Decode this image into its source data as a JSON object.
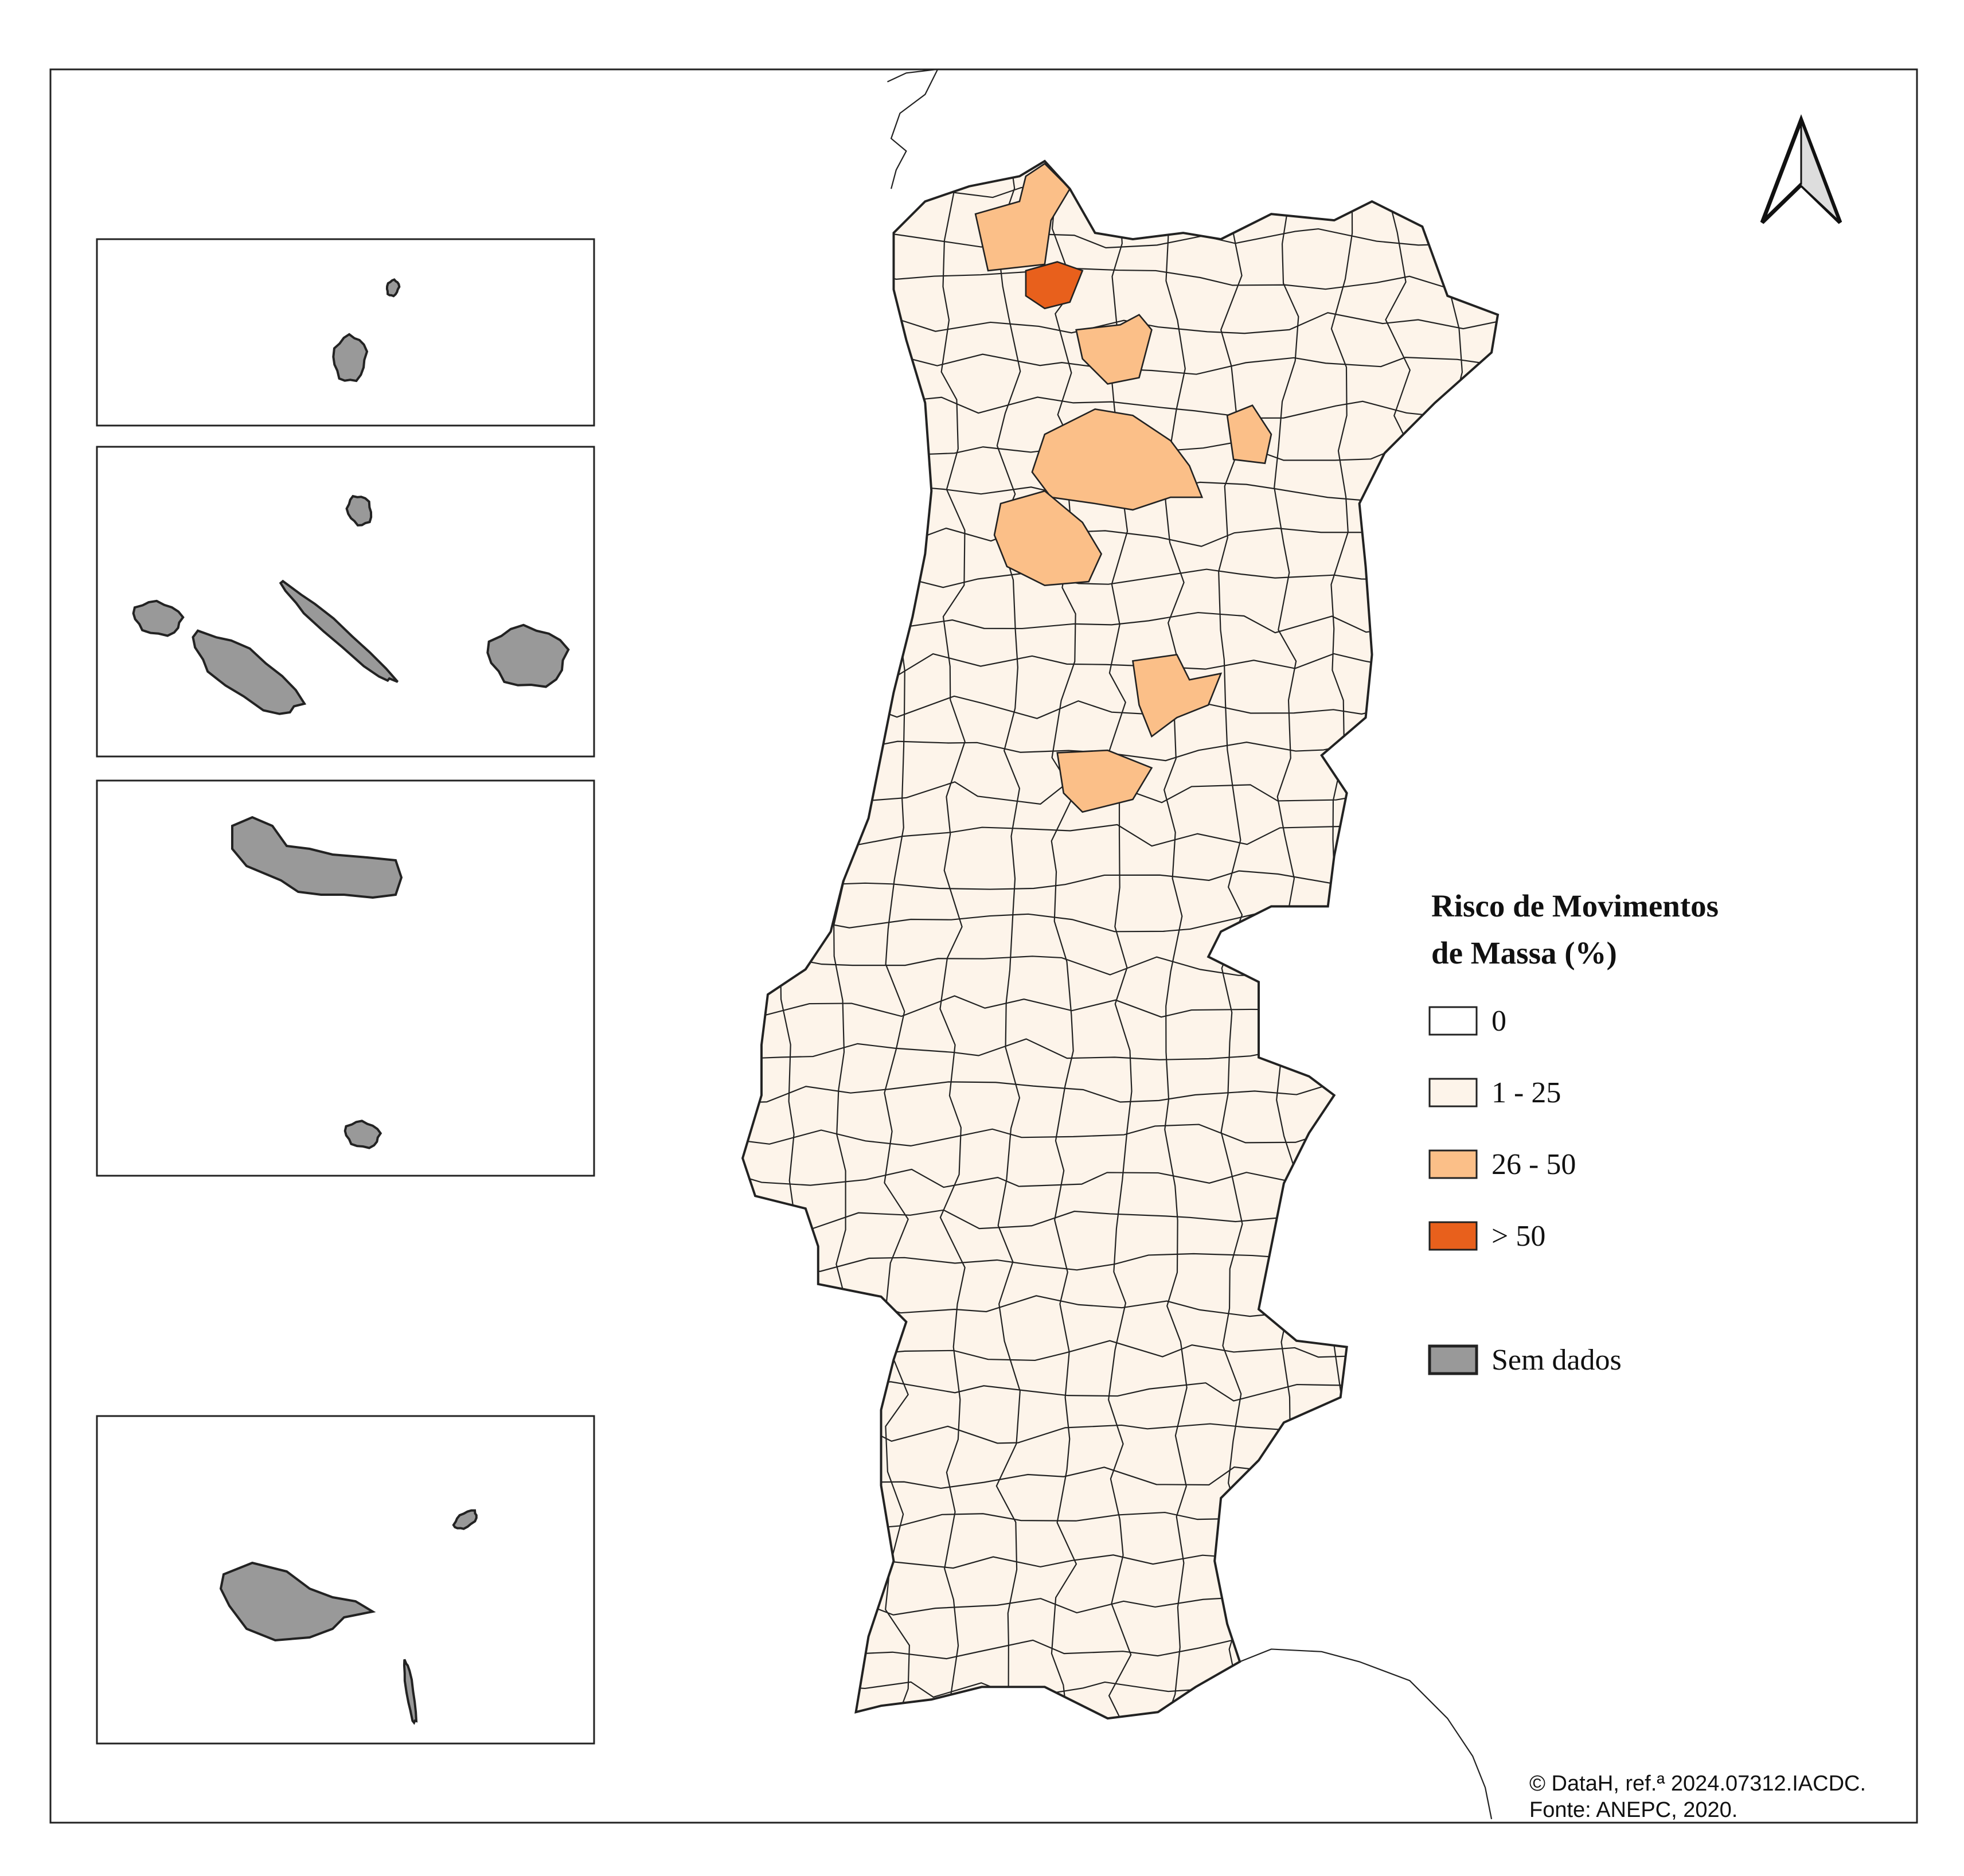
{
  "legend": {
    "title": [
      "Risco de Movimentos",
      "de Massa (%)"
    ],
    "items": [
      {
        "label": "0",
        "color": "#ffffff"
      },
      {
        "label": "1 - 25",
        "color": "#fdf4ea"
      },
      {
        "label": "26 - 50",
        "color": "#fbbf88"
      },
      {
        "label": "> 50",
        "color": "#e8601c"
      },
      {
        "label": "Sem dados",
        "color": "#999999"
      }
    ]
  },
  "credits": [
    "© DataH, ref.ª 2024.07312.IACDC.",
    "Fonte:  ANEPC, 2020."
  ]
}
